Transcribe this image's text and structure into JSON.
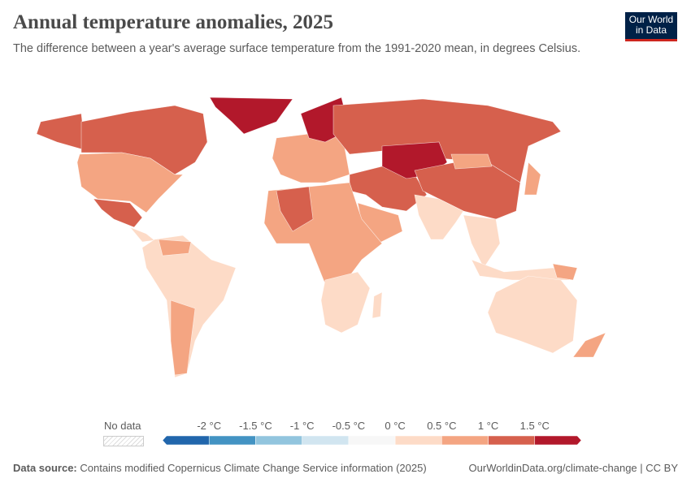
{
  "header": {
    "title": "Annual temperature anomalies, 2025",
    "subtitle": "The difference between a year's average surface temperature from the 1991-2020 mean, in degrees Celsius."
  },
  "logo": {
    "line1": "Our World",
    "line2": "in Data"
  },
  "legend": {
    "no_data": "No data",
    "ticks": [
      "-2 °C",
      "-1.5 °C",
      "-1 °C",
      "-0.5 °C",
      "0 °C",
      "0.5 °C",
      "1 °C",
      "1.5 °C"
    ],
    "bins": [
      {
        "min": null,
        "max": -2,
        "color": "#2166ac"
      },
      {
        "min": -2,
        "max": -1.5,
        "color": "#4393c3"
      },
      {
        "min": -1.5,
        "max": -1,
        "color": "#92c5de"
      },
      {
        "min": -1,
        "max": -0.5,
        "color": "#d1e5f0"
      },
      {
        "min": -0.5,
        "max": 0,
        "color": "#f7f7f7"
      },
      {
        "min": 0,
        "max": 0.5,
        "color": "#fddbc7"
      },
      {
        "min": 0.5,
        "max": 1,
        "color": "#f4a582"
      },
      {
        "min": 1,
        "max": 1.5,
        "color": "#d6604d"
      },
      {
        "min": 1.5,
        "max": null,
        "color": "#b2182b"
      }
    ]
  },
  "footer": {
    "source_label": "Data source:",
    "source_text": " Contains modified Copernicus Climate Change Service information (2025)",
    "link": "OurWorldinData.org/climate-change | CC BY"
  }
}
